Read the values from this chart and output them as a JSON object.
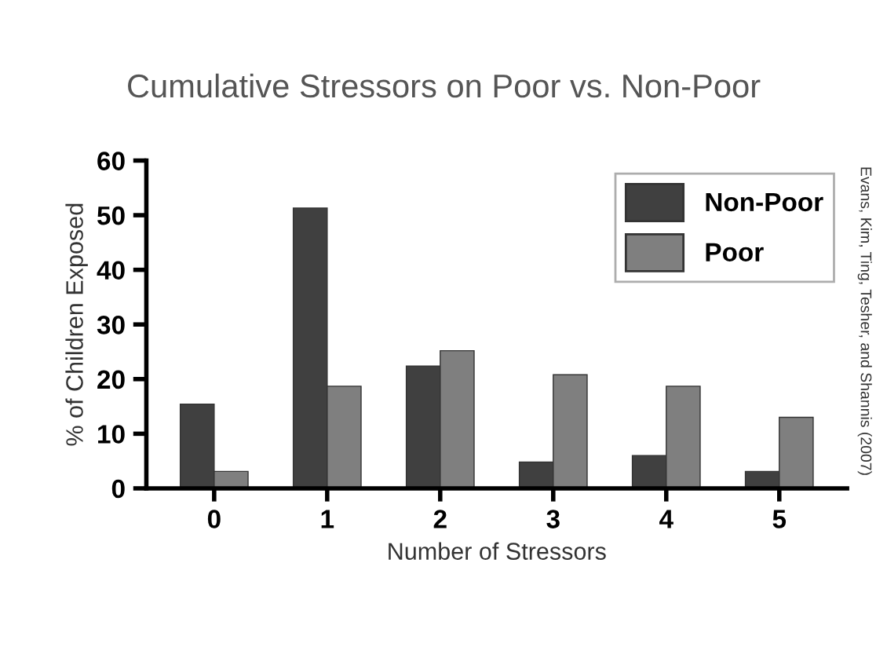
{
  "chart_data": {
    "type": "bar",
    "title": "Cumulative Stressors on Poor vs. Non-Poor",
    "xlabel": "Number of Stressors",
    "ylabel": "% of Children Exposed",
    "categories": [
      "0",
      "1",
      "2",
      "3",
      "4",
      "5"
    ],
    "series": [
      {
        "name": "Non-Poor",
        "color": "#404040",
        "values": [
          15.4,
          51.3,
          22.4,
          4.8,
          6.0,
          3.1
        ]
      },
      {
        "name": "Poor",
        "color": "#7f7f7f",
        "values": [
          3.1,
          18.7,
          25.2,
          20.8,
          18.7,
          13.0
        ]
      }
    ],
    "ylim": [
      0,
      60
    ],
    "yticks": [
      0,
      10,
      20,
      30,
      40,
      50,
      60
    ],
    "grid": false,
    "legend": "top right",
    "annotations": [
      "Evans, Kim, Ting, Tesher, and Shannis (2007)"
    ]
  }
}
